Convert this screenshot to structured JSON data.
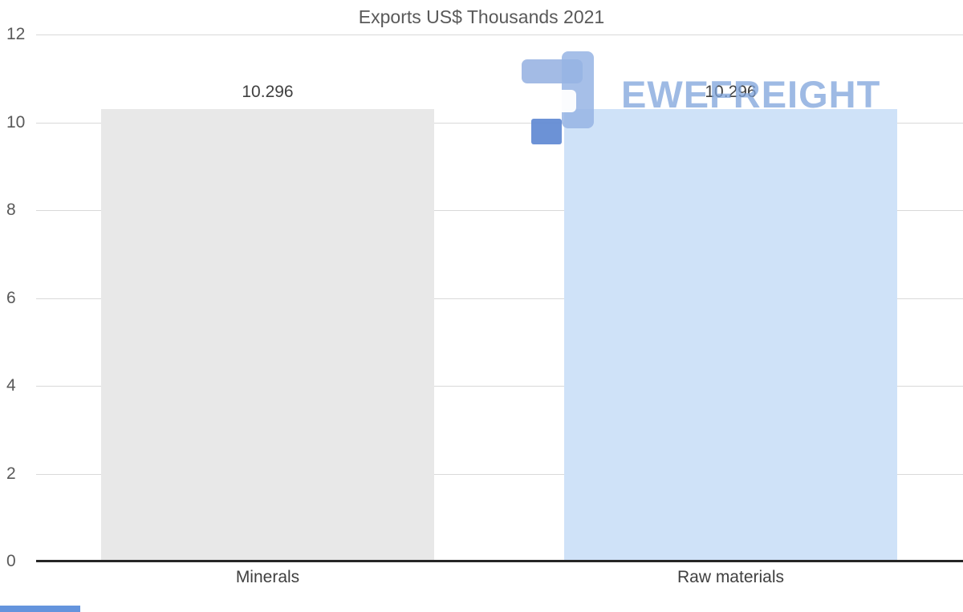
{
  "chart_data": {
    "type": "bar",
    "title": "Exports US$ Thousands 2021",
    "categories": [
      "Minerals",
      "Raw materials"
    ],
    "values": [
      10.296,
      10.296
    ],
    "value_labels": [
      "10.296",
      "10.296"
    ],
    "ylim": [
      0,
      12
    ],
    "yticks": [
      0,
      2,
      4,
      6,
      8,
      10,
      12
    ],
    "grid": true,
    "legend": false,
    "xlabel": "",
    "ylabel": "",
    "bar_colors": [
      "#e8e8e8",
      "#cfe2f8"
    ]
  },
  "watermark": {
    "text": "EWEFREIGHT",
    "color": "#7da3db"
  },
  "colors": {
    "title": "#595959",
    "axis_label": "#595959",
    "gridline": "#d9d9d9",
    "axis_line": "#262626",
    "value_label": "#404040"
  }
}
